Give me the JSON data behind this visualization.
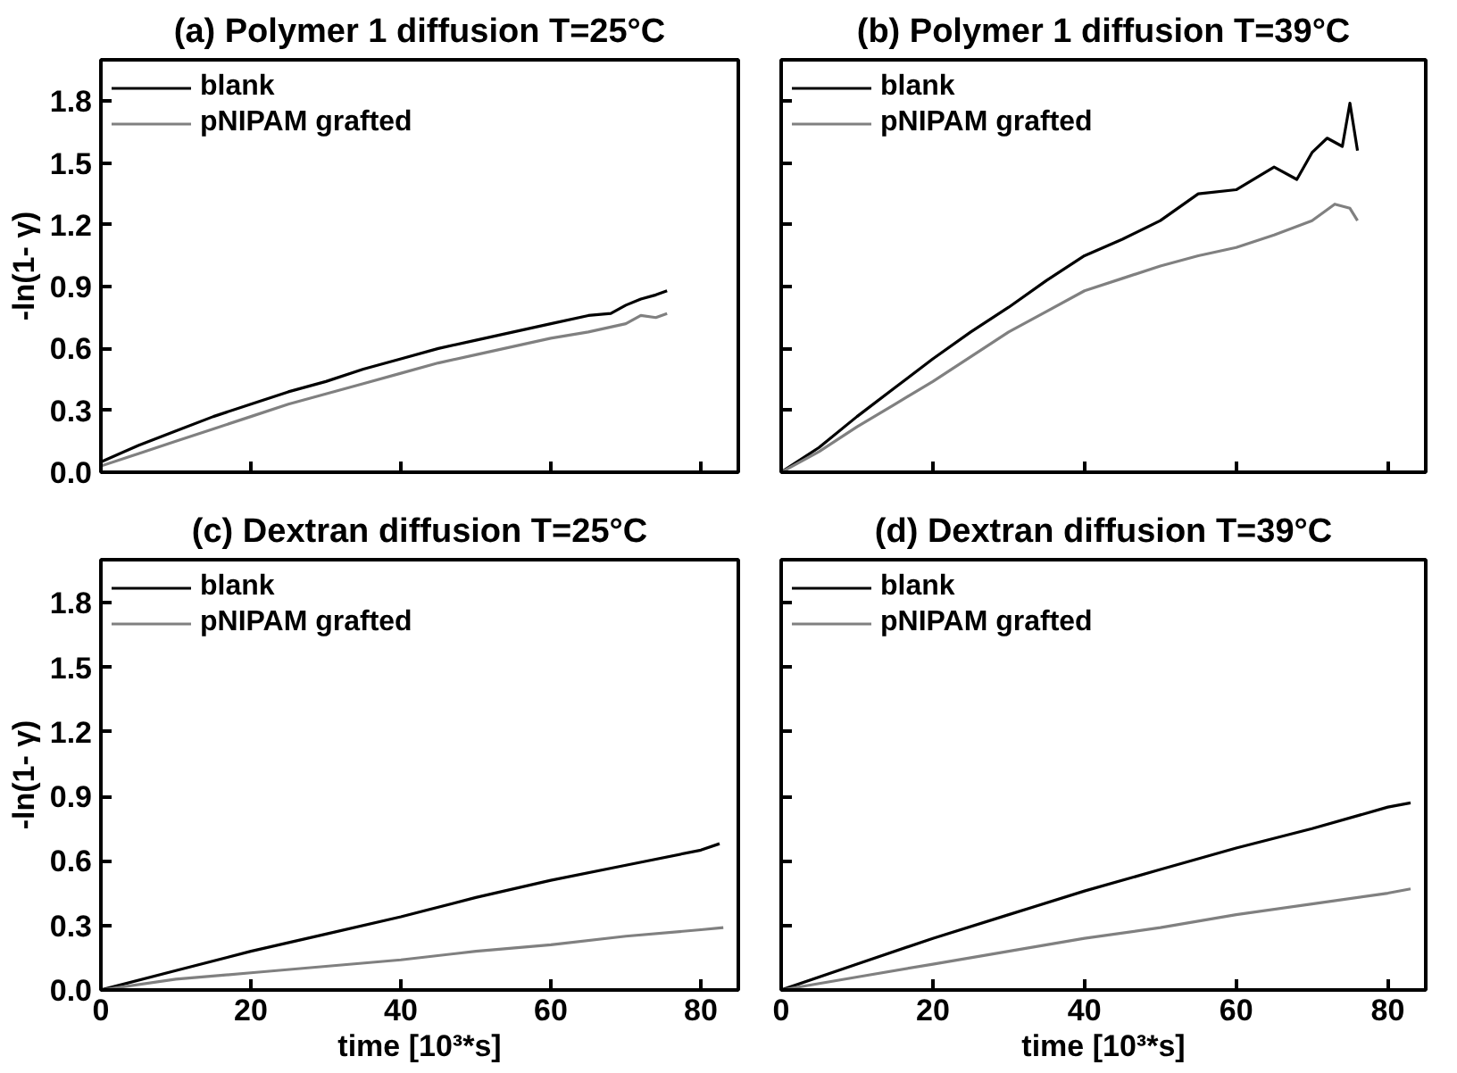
{
  "chart_data": [
    {
      "type": "line",
      "title": "(a) Polymer 1 diffusion T=25°C",
      "ylabel": "-ln(1- γ)",
      "xlim": [
        0,
        85
      ],
      "ylim": [
        0,
        2.0
      ],
      "xticks": [
        0,
        20,
        40,
        60,
        80
      ],
      "yticks": [
        {
          "value": 0,
          "label": "0.0"
        },
        {
          "value": 0.3,
          "label": "0.3"
        },
        {
          "value": 0.6,
          "label": "0.6"
        },
        {
          "value": 0.9,
          "label": "0.9"
        },
        {
          "value": 1.2,
          "label": "1.2"
        },
        {
          "value": 1.5,
          "label": "1.5"
        },
        {
          "value": 1.8,
          "label": "1.8"
        }
      ],
      "tick_labels": "y",
      "legend": "top left",
      "grid": false,
      "series": [
        {
          "name": "blank",
          "color": "#000000",
          "x": [
            0,
            5,
            10,
            15,
            20,
            25,
            30,
            35,
            40,
            45,
            50,
            55,
            60,
            65,
            68,
            70,
            72,
            74,
            75.5
          ],
          "values": [
            0.05,
            0.13,
            0.2,
            0.27,
            0.33,
            0.39,
            0.44,
            0.5,
            0.55,
            0.6,
            0.64,
            0.68,
            0.72,
            0.76,
            0.77,
            0.81,
            0.84,
            0.86,
            0.88
          ]
        },
        {
          "name": "pNIPAM grafted",
          "color": "#808080",
          "x": [
            0,
            5,
            10,
            15,
            20,
            25,
            30,
            35,
            40,
            45,
            50,
            55,
            60,
            65,
            70,
            72,
            74,
            75.5
          ],
          "values": [
            0.03,
            0.09,
            0.15,
            0.21,
            0.27,
            0.33,
            0.38,
            0.43,
            0.48,
            0.53,
            0.57,
            0.61,
            0.65,
            0.68,
            0.72,
            0.76,
            0.75,
            0.77
          ]
        }
      ]
    },
    {
      "type": "line",
      "title": "(b) Polymer 1 diffusion T=39°C",
      "xlim": [
        0,
        85
      ],
      "ylim": [
        0,
        2.0
      ],
      "xticks": [
        0,
        20,
        40,
        60,
        80
      ],
      "yticks": [
        0,
        0.3,
        0.6,
        0.9,
        1.2,
        1.5,
        1.8
      ],
      "tick_labels": false,
      "legend": "top left",
      "grid": false,
      "series": [
        {
          "name": "blank",
          "color": "#000000",
          "x": [
            0,
            5,
            10,
            15,
            20,
            25,
            30,
            35,
            40,
            45,
            50,
            55,
            60,
            65,
            68,
            70,
            72,
            74,
            75,
            76
          ],
          "values": [
            0,
            0.12,
            0.27,
            0.41,
            0.55,
            0.68,
            0.8,
            0.93,
            1.05,
            1.13,
            1.22,
            1.35,
            1.37,
            1.48,
            1.42,
            1.55,
            1.62,
            1.58,
            1.79,
            1.56
          ]
        },
        {
          "name": "pNIPAM grafted",
          "color": "#808080",
          "x": [
            0,
            5,
            10,
            15,
            20,
            25,
            30,
            35,
            40,
            45,
            50,
            55,
            60,
            65,
            70,
            73,
            75,
            76
          ],
          "values": [
            0,
            0.1,
            0.22,
            0.33,
            0.44,
            0.56,
            0.68,
            0.78,
            0.88,
            0.94,
            1.0,
            1.05,
            1.09,
            1.15,
            1.22,
            1.3,
            1.28,
            1.22
          ]
        }
      ]
    },
    {
      "type": "line",
      "title": "(c) Dextran diffusion T=25°C",
      "xlabel": "time [10³*s]",
      "ylabel": "-ln(1- γ)",
      "xlim": [
        0,
        85
      ],
      "ylim": [
        0,
        2.0
      ],
      "xticks": [
        0,
        20,
        40,
        60,
        80
      ],
      "yticks": [
        {
          "value": 0,
          "label": "0.0"
        },
        {
          "value": 0.3,
          "label": "0.3"
        },
        {
          "value": 0.6,
          "label": "0.6"
        },
        {
          "value": 0.9,
          "label": "0.9"
        },
        {
          "value": 1.2,
          "label": "1.2"
        },
        {
          "value": 1.5,
          "label": "1.5"
        },
        {
          "value": 1.8,
          "label": "1.8"
        }
      ],
      "legend": "top left",
      "grid": false,
      "series": [
        {
          "name": "blank",
          "color": "#000000",
          "x": [
            0,
            10,
            20,
            30,
            40,
            50,
            60,
            70,
            80,
            82.5
          ],
          "values": [
            0,
            0.09,
            0.18,
            0.26,
            0.34,
            0.43,
            0.51,
            0.58,
            0.65,
            0.68
          ]
        },
        {
          "name": "pNIPAM grafted",
          "color": "#808080",
          "x": [
            0,
            10,
            20,
            30,
            40,
            50,
            60,
            70,
            80,
            83
          ],
          "values": [
            0,
            0.05,
            0.08,
            0.11,
            0.14,
            0.18,
            0.21,
            0.25,
            0.28,
            0.29
          ]
        }
      ]
    },
    {
      "type": "line",
      "title": "(d) Dextran diffusion T=39°C",
      "xlabel": "time [10³*s]",
      "xlim": [
        0,
        85
      ],
      "ylim": [
        0,
        2.0
      ],
      "xticks": [
        0,
        20,
        40,
        60,
        80
      ],
      "yticks": [
        0,
        0.3,
        0.6,
        0.9,
        1.2,
        1.5,
        1.8
      ],
      "tick_labels": "x",
      "legend": "top left",
      "grid": false,
      "series": [
        {
          "name": "blank",
          "color": "#000000",
          "x": [
            0,
            10,
            20,
            30,
            40,
            50,
            60,
            70,
            80,
            83
          ],
          "values": [
            0,
            0.12,
            0.24,
            0.35,
            0.46,
            0.56,
            0.66,
            0.75,
            0.85,
            0.87
          ]
        },
        {
          "name": "pNIPAM grafted",
          "color": "#808080",
          "x": [
            0,
            10,
            20,
            30,
            40,
            50,
            60,
            70,
            80,
            83
          ],
          "values": [
            0,
            0.06,
            0.12,
            0.18,
            0.24,
            0.29,
            0.35,
            0.4,
            0.45,
            0.47
          ]
        }
      ]
    }
  ]
}
